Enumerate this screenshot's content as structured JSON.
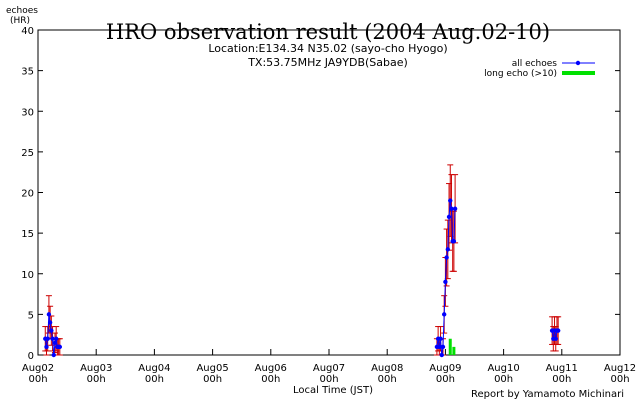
{
  "chart_data": {
    "type": "scatter",
    "title": "HRO observation result (2004 Aug.02-10)",
    "subtitle_lines": [
      "Location:E134.34 N35.02 (sayo-cho Hyogo)",
      "TX:53.75MHz JA9YDB(Sabae)"
    ],
    "ylabel_lines": [
      "echoes",
      "(HR)"
    ],
    "xlabel": "Local Time (JST)",
    "credit": "Report by Yamamoto Michinari",
    "ylim": [
      0,
      40
    ],
    "yticks": [
      0,
      5,
      10,
      15,
      20,
      25,
      30,
      35,
      40
    ],
    "xlim": [
      0,
      240
    ],
    "xticks": [
      {
        "x": 0,
        "label1": "Aug02",
        "label2": "00h"
      },
      {
        "x": 24,
        "label1": "Aug03",
        "label2": "00h"
      },
      {
        "x": 48,
        "label1": "Aug04",
        "label2": "00h"
      },
      {
        "x": 72,
        "label1": "Aug05",
        "label2": "00h"
      },
      {
        "x": 96,
        "label1": "Aug06",
        "label2": "00h"
      },
      {
        "x": 120,
        "label1": "Aug07",
        "label2": "00h"
      },
      {
        "x": 144,
        "label1": "Aug08",
        "label2": "00h"
      },
      {
        "x": 168,
        "label1": "Aug09",
        "label2": "00h"
      },
      {
        "x": 192,
        "label1": "Aug10",
        "label2": "00h"
      },
      {
        "x": 216,
        "label1": "Aug11",
        "label2": "00h"
      },
      {
        "x": 240,
        "label1": "Aug12",
        "label2": "00h"
      }
    ],
    "legend_placement": "top-right",
    "grid": false,
    "colors": {
      "all_echoes": "#0000ff",
      "error_bars": "#cc0000",
      "long_echo": "#00e000"
    },
    "series": [
      {
        "name": "all echoes",
        "style": "points-with-error-bars",
        "points": [
          {
            "x": 3.0,
            "y": 2.0,
            "err": 1.5
          },
          {
            "x": 3.5,
            "y": 1.0,
            "err": 1.0
          },
          {
            "x": 4.0,
            "y": 2.0,
            "err": 1.5
          },
          {
            "x": 4.5,
            "y": 5.0,
            "err": 2.3
          },
          {
            "x": 5.0,
            "y": 4.0,
            "err": 2.0
          },
          {
            "x": 5.5,
            "y": 3.0,
            "err": 1.8
          },
          {
            "x": 6.0,
            "y": 2.0,
            "err": 1.5
          },
          {
            "x": 6.5,
            "y": 0.0,
            "err": 0.0
          },
          {
            "x": 7.0,
            "y": 1.5,
            "err": 1.2
          },
          {
            "x": 7.5,
            "y": 2.0,
            "err": 1.5
          },
          {
            "x": 8.0,
            "y": 1.0,
            "err": 1.0
          },
          {
            "x": 8.5,
            "y": 1.0,
            "err": 1.0
          },
          {
            "x": 9.0,
            "y": 1.0,
            "err": 1.0
          },
          {
            "x": 164.5,
            "y": 1.0,
            "err": 1.0
          },
          {
            "x": 165.0,
            "y": 2.0,
            "err": 1.5
          },
          {
            "x": 165.5,
            "y": 1.0,
            "err": 1.0
          },
          {
            "x": 166.0,
            "y": 2.0,
            "err": 1.5
          },
          {
            "x": 166.5,
            "y": 0.0,
            "err": 0.0
          },
          {
            "x": 167.0,
            "y": 1.0,
            "err": 1.0
          },
          {
            "x": 167.5,
            "y": 5.0,
            "err": 2.3
          },
          {
            "x": 168.0,
            "y": 9.0,
            "err": 3.0
          },
          {
            "x": 168.5,
            "y": 12.0,
            "err": 3.5
          },
          {
            "x": 169.0,
            "y": 13.0,
            "err": 3.6
          },
          {
            "x": 169.5,
            "y": 17.0,
            "err": 4.1
          },
          {
            "x": 170.0,
            "y": 19.0,
            "err": 4.4
          },
          {
            "x": 170.5,
            "y": 18.0,
            "err": 4.2
          },
          {
            "x": 171.0,
            "y": 14.0,
            "err": 3.7
          },
          {
            "x": 171.5,
            "y": 14.0,
            "err": 3.7
          },
          {
            "x": 172.0,
            "y": 18.0,
            "err": 4.2
          },
          {
            "x": 212.0,
            "y": 3.0,
            "err": 1.7
          },
          {
            "x": 212.5,
            "y": 2.0,
            "err": 1.5
          },
          {
            "x": 213.0,
            "y": 3.0,
            "err": 1.7
          },
          {
            "x": 213.5,
            "y": 2.0,
            "err": 1.5
          },
          {
            "x": 214.0,
            "y": 3.0,
            "err": 1.7
          },
          {
            "x": 214.5,
            "y": 3.0,
            "err": 1.7
          }
        ]
      },
      {
        "name": "long echo (>10)",
        "style": "bars",
        "points": [
          {
            "x": 170.0,
            "y": 2.0
          },
          {
            "x": 171.5,
            "y": 1.0
          }
        ]
      }
    ]
  }
}
